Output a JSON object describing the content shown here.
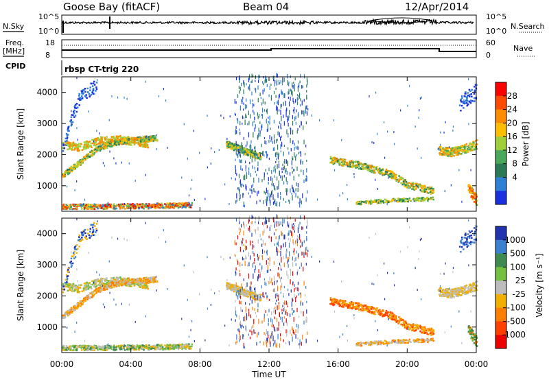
{
  "header": {
    "station": "Goose Bay (fitACF)",
    "beam": "Beam 04",
    "date": "12/Apr/2014"
  },
  "top_panels": {
    "nsky_label": "N.Sky",
    "nsky_ticks": [
      "10^5",
      "10^0"
    ],
    "nsearch_label": "N.Search",
    "nsearch_ticks": [
      "10^5",
      "10^0"
    ],
    "freq_label_1": "Freq.",
    "freq_label_2": "[MHz]",
    "freq_ticks": [
      "18",
      "8"
    ],
    "nave_label": "Nave",
    "nave_ticks": [
      "60",
      "0"
    ],
    "cpid_label": "CPID",
    "cpid_value": "rbsp CT-trig 220"
  },
  "chart_data": [
    {
      "type": "heatmap",
      "name": "power",
      "ylabel": "Slant Range [km]",
      "yticks": [
        "4000",
        "3000",
        "2000",
        "1000"
      ],
      "ylim": [
        180,
        4500
      ],
      "xticks": [
        "00:00",
        "04:00",
        "08:00",
        "12:00",
        "16:00",
        "20:00",
        "00:00"
      ],
      "xlim": [
        0,
        24
      ],
      "colorbar": {
        "label": "Power [dB]",
        "ticks": [
          "28",
          "24",
          "20",
          "16",
          "12",
          "8",
          "4"
        ],
        "colors": [
          "#ff0000",
          "#ff4a00",
          "#ff8c00",
          "#ffbe00",
          "#9fd03a",
          "#4aa85a",
          "#2a7a55",
          "#2e7fd6",
          "#1a2fe0"
        ]
      }
    },
    {
      "type": "heatmap",
      "name": "velocity",
      "ylabel": "Slant Range [km]",
      "yticks": [
        "4000",
        "3000",
        "2000",
        "1000"
      ],
      "ylim": [
        180,
        4500
      ],
      "xticks": [
        "00:00",
        "04:00",
        "08:00",
        "12:00",
        "16:00",
        "20:00",
        "00:00"
      ],
      "xlim": [
        0,
        24
      ],
      "xlabel": "Time UT",
      "colorbar": {
        "label": "Velocity [m s⁻¹]",
        "ticks": [
          "1000",
          "500",
          "100",
          "25",
          "-25",
          "-100",
          "-500",
          "-1000"
        ],
        "colors": [
          "#2233b0",
          "#3a80d0",
          "#3f8a50",
          "#74c040",
          "#bdbdbd",
          "#f0b000",
          "#ff8000",
          "#ff4000",
          "#ee0000"
        ]
      }
    }
  ]
}
